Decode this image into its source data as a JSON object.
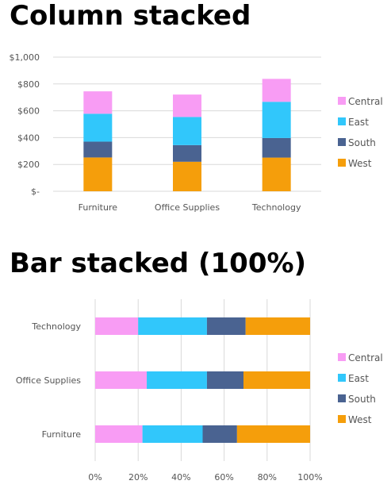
{
  "chart_data": [
    {
      "type": "bar",
      "orientation": "vertical",
      "stacked": true,
      "title": "Column stacked",
      "categories": [
        "Furniture",
        "Office Supplies",
        "Technology"
      ],
      "series": [
        {
          "name": "West",
          "color": "#f59e0b",
          "values": [
            252,
            220,
            251
          ]
        },
        {
          "name": "South",
          "color": "#4a6391",
          "values": [
            118,
            124,
            146
          ]
        },
        {
          "name": "East",
          "color": "#31c7fb",
          "values": [
            208,
            210,
            270
          ]
        },
        {
          "name": "Central",
          "color": "#f89cf4",
          "values": [
            167,
            167,
            171
          ]
        }
      ],
      "ylim": [
        0,
        1000
      ],
      "yticks": [
        0,
        200,
        400,
        600,
        800,
        1000
      ],
      "ytick_labels": [
        "$-",
        "$200",
        "$400",
        "$600",
        "$800",
        "$1,000"
      ],
      "grid": true,
      "legend_position": "right"
    },
    {
      "type": "bar",
      "orientation": "horizontal",
      "stacked": true,
      "normalized": true,
      "title": "Bar stacked (100%)",
      "categories": [
        "Furniture",
        "Office Supplies",
        "Technology"
      ],
      "series": [
        {
          "name": "West",
          "color": "#f59e0b",
          "values": [
            34,
            31,
            30
          ]
        },
        {
          "name": "South",
          "color": "#4a6391",
          "values": [
            16,
            17,
            18
          ]
        },
        {
          "name": "East",
          "color": "#31c7fb",
          "values": [
            28,
            28,
            32
          ]
        },
        {
          "name": "Central",
          "color": "#f89cf4",
          "values": [
            22,
            24,
            20
          ]
        }
      ],
      "xlim": [
        0,
        100
      ],
      "xticks": [
        0,
        20,
        40,
        60,
        80,
        100
      ],
      "xtick_labels": [
        "0%",
        "20%",
        "40%",
        "60%",
        "80%",
        "100%"
      ],
      "grid": true,
      "legend_position": "right"
    }
  ]
}
